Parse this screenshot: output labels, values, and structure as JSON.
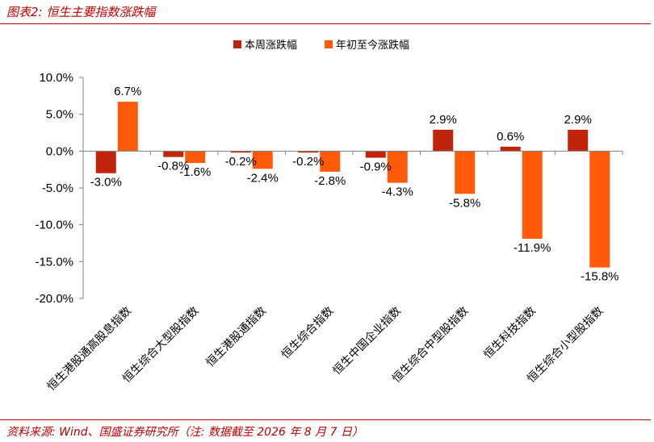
{
  "header": {
    "title": "图表2:  恒生主要指数涨跌幅"
  },
  "footer": {
    "source": "资料来源:  Wind、国盛证券研究所（注:  数据截至 2026 年 8 月 7 日）"
  },
  "colors": {
    "accent": "#c00000",
    "weekly": "#c0240a",
    "ytd": "#ff5a0a"
  },
  "chart_data": {
    "type": "bar",
    "categories": [
      "恒生港股通高股息指数",
      "恒生综合大型股指数",
      "恒生港股通指数",
      "恒生综合指数",
      "恒生中国企业指数",
      "恒生综合中型股指数",
      "恒生科技指数",
      "恒生综合小型股指数"
    ],
    "series": [
      {
        "name": "本周涨跌幅",
        "values": [
          -3.0,
          -0.8,
          -0.2,
          -0.2,
          -0.9,
          2.9,
          0.6,
          2.9
        ],
        "labels": [
          "-3.0%",
          "-0.8%",
          "-0.2%",
          "-0.2%",
          "-0.9%",
          "2.9%",
          "0.6%",
          "2.9%"
        ]
      },
      {
        "name": "年初至今涨跌幅",
        "values": [
          6.7,
          -1.6,
          -2.4,
          -2.8,
          -4.3,
          -5.8,
          -11.9,
          -15.8
        ],
        "labels": [
          "6.7%",
          "-1.6%",
          "-2.4%",
          "-2.8%",
          "-4.3%",
          "-5.8%",
          "-11.9%",
          "-15.8%"
        ]
      }
    ],
    "yticks": [
      "10.0%",
      "5.0%",
      "0.0%",
      "-5.0%",
      "-10.0%",
      "-15.0%",
      "-20.0%"
    ],
    "ylim": [
      -20,
      10
    ],
    "legend": "top-center",
    "grid": false
  }
}
